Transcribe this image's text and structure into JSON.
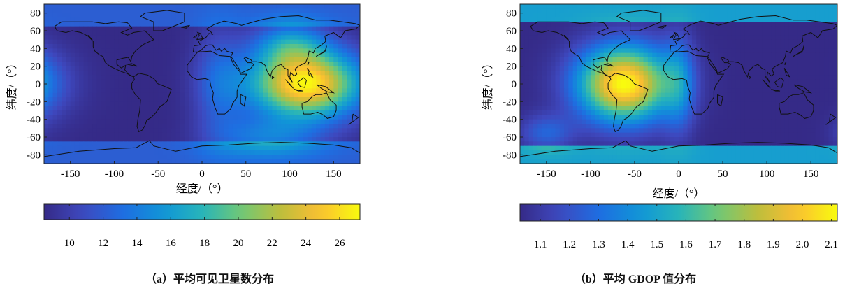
{
  "panels": [
    {
      "id": "a",
      "caption_prefix": "（",
      "caption_letter": "a",
      "caption_suffix": "）",
      "caption_text": "平均可见卫星数分布",
      "xlabel": "经度/（°）",
      "ylabel": "纬度/（°）",
      "map": {
        "x_ticks": [
          "-150",
          "-100",
          "-50",
          "0",
          "50",
          "100",
          "150"
        ],
        "y_ticks": [
          "80",
          "60",
          "40",
          "20",
          "0",
          "-20",
          "-40",
          "-60",
          "-80"
        ],
        "x_tick_values": [
          -150,
          -100,
          -50,
          0,
          50,
          100,
          150
        ],
        "y_tick_values": [
          80,
          60,
          40,
          20,
          0,
          -20,
          -40,
          -60,
          -80
        ],
        "xlim": [
          -180,
          180
        ],
        "ylim": [
          -90,
          90
        ]
      },
      "colorbar": {
        "ticks": [
          "10",
          "12",
          "14",
          "16",
          "18",
          "20",
          "22",
          "24",
          "26"
        ],
        "tick_values": [
          10,
          12,
          14,
          16,
          18,
          20,
          22,
          24,
          26
        ],
        "range": [
          8.5,
          27.2
        ]
      },
      "field": "visible",
      "colormap": "parula"
    },
    {
      "id": "b",
      "caption_prefix": "（",
      "caption_letter": "b",
      "caption_suffix": "）",
      "caption_text": "平均 GDOP 值分布",
      "xlabel": "经度/（°）",
      "ylabel": "纬度/（°）",
      "map": {
        "x_ticks": [
          "-150",
          "-100",
          "-50",
          "0",
          "50",
          "100",
          "150"
        ],
        "y_ticks": [
          "80",
          "60",
          "40",
          "20",
          "0",
          "-20",
          "-40",
          "-60",
          "-80"
        ],
        "x_tick_values": [
          -150,
          -100,
          -50,
          0,
          50,
          100,
          150
        ],
        "y_tick_values": [
          80,
          60,
          40,
          20,
          0,
          -20,
          -40,
          -60,
          -80
        ],
        "xlim": [
          -180,
          180
        ],
        "ylim": [
          -90,
          90
        ]
      },
      "colorbar": {
        "ticks": [
          "1.1",
          "1.2",
          "1.3",
          "1.4",
          "1.5",
          "1.6",
          "1.7",
          "1.8",
          "1.9",
          "2.0",
          "2.1"
        ],
        "tick_values": [
          1.1,
          1.2,
          1.3,
          1.4,
          1.5,
          1.6,
          1.7,
          1.8,
          1.9,
          2.0,
          2.1
        ],
        "range": [
          1.03,
          2.12
        ]
      },
      "field": "gdop",
      "colormap": "parula"
    }
  ]
}
